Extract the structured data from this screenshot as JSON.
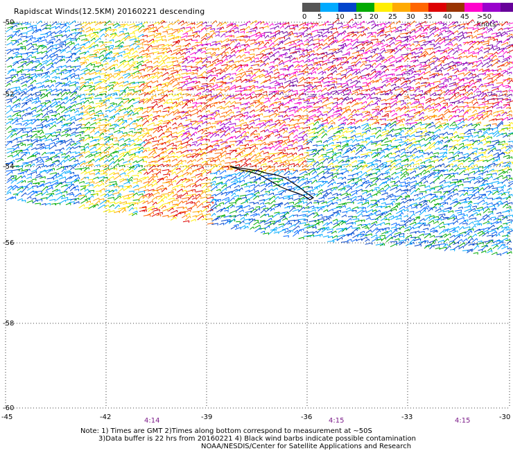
{
  "title": "Rapidscat Winds(12.5KM) 20160221 descending",
  "legend": {
    "colors": [
      "#555555",
      "#00aaff",
      "#0044cc",
      "#00aa00",
      "#ffee00",
      "#ffaa00",
      "#ff6600",
      "#dd0000",
      "#993300",
      "#ff00cc",
      "#9900cc",
      "#660099"
    ],
    "labels": [
      "0",
      "5",
      "10",
      "15",
      "20",
      "25",
      "30",
      "35",
      "40",
      "45",
      ">50 knots"
    ]
  },
  "axes": {
    "lat_labels": [
      "-50",
      "-52",
      "-54",
      "-56",
      "-58",
      "-60"
    ],
    "lon_labels": [
      "-45",
      "-42",
      "-39",
      "-36",
      "-33",
      "-30"
    ]
  },
  "times": [
    "4:14",
    "4:15",
    "4:15"
  ],
  "notes": {
    "line1": "Note: 1) Times are GMT 2)Times along bottom correspond to measurement at ~50S",
    "line2": "3)Data buffer is 22 hrs from 20160221 4) Black wind barbs indicate possible contamination",
    "line3": "NOAA/NESDIS/Center for Satellite Applications and Research"
  }
}
